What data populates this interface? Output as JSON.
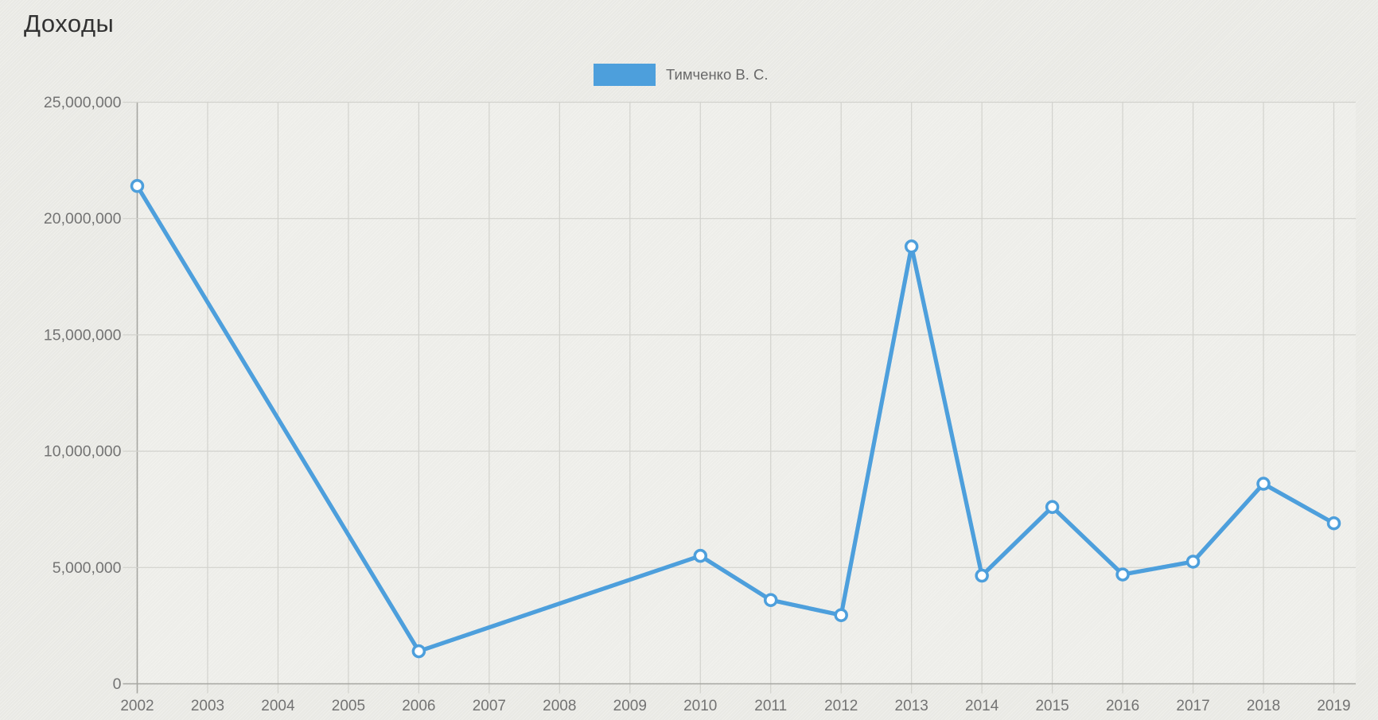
{
  "chart_data": {
    "type": "line",
    "title": "Доходы",
    "series": [
      {
        "name": "Тимченко В. С.",
        "color": "#4d9fdc",
        "points": [
          {
            "year": 2002,
            "value": 21400000
          },
          {
            "year": 2006,
            "value": 1400000
          },
          {
            "year": 2010,
            "value": 5500000
          },
          {
            "year": 2011,
            "value": 3600000
          },
          {
            "year": 2012,
            "value": 2950000
          },
          {
            "year": 2013,
            "value": 18800000
          },
          {
            "year": 2014,
            "value": 4650000
          },
          {
            "year": 2015,
            "value": 7600000
          },
          {
            "year": 2016,
            "value": 4700000
          },
          {
            "year": 2017,
            "value": 5250000
          },
          {
            "year": 2018,
            "value": 8600000
          },
          {
            "year": 2019,
            "value": 6900000
          }
        ]
      }
    ],
    "x_ticks": [
      2002,
      2003,
      2004,
      2005,
      2006,
      2007,
      2008,
      2009,
      2010,
      2011,
      2012,
      2013,
      2014,
      2015,
      2016,
      2017,
      2018,
      2019
    ],
    "y_ticks": [
      0,
      5000000,
      10000000,
      15000000,
      20000000,
      25000000
    ],
    "y_tick_labels": [
      "0",
      "5,000,000",
      "10,000,000",
      "15,000,000",
      "20,000,000",
      "25,000,000"
    ],
    "xlim": [
      2002,
      2019
    ],
    "ylim": [
      0,
      25000000
    ],
    "grid": true,
    "legend_position": "top-center",
    "marker_style": "circle-white-fill"
  },
  "colors": {
    "background": "#e9e9e4",
    "grid_line": "#d2d2cd",
    "axis_line": "#a6a6a1",
    "tick_text": "#737373",
    "title_text": "#333333",
    "marker_fill": "#ffffff"
  }
}
